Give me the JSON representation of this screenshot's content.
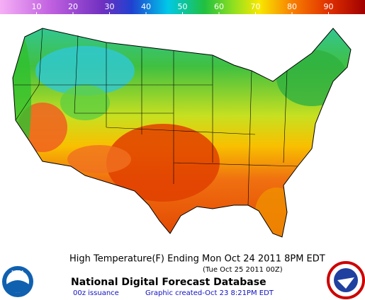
{
  "colorbar": {
    "lim": [
      0,
      100
    ],
    "ticks": [
      10,
      20,
      30,
      40,
      50,
      60,
      70,
      80,
      90
    ]
  },
  "caption": {
    "title": "High Temperature(F) Ending Mon Oct 24 2011  8PM EDT",
    "valid_time": "(Tue Oct 25 2011 00Z)",
    "database": "National Digital Forecast Database",
    "issuance": "00z issuance",
    "created": "Graphic created-Oct 23  8:21PM EDT"
  },
  "logos": {
    "left": "NOAA"
  }
}
